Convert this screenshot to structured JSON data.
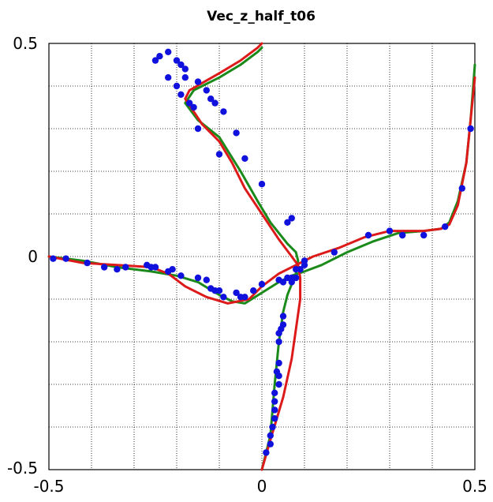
{
  "chart_data": {
    "type": "line",
    "title": "Vec_z_half_t06",
    "xlim": [
      -0.5,
      0.5
    ],
    "ylim": [
      -0.5,
      0.5
    ],
    "x_ticks": [
      -0.5,
      0,
      0.5
    ],
    "y_ticks": [
      -0.5,
      0,
      0.5
    ],
    "x_tick_labels": [
      "-0.5",
      "0",
      "0.5"
    ],
    "y_tick_labels": [
      "-0.5",
      "0",
      "0.5"
    ],
    "grid": true,
    "series": [
      {
        "kind": "line",
        "color": "#1a8a1a",
        "segments": [
          [
            [
              -0.5,
              0.0
            ],
            [
              -0.42,
              -0.01
            ],
            [
              -0.34,
              -0.025
            ],
            [
              -0.26,
              -0.035
            ],
            [
              -0.2,
              -0.045
            ],
            [
              -0.15,
              -0.06
            ],
            [
              -0.1,
              -0.09
            ],
            [
              -0.07,
              -0.105
            ],
            [
              -0.04,
              -0.11
            ],
            [
              0.0,
              -0.085
            ],
            [
              0.04,
              -0.06
            ],
            [
              0.07,
              -0.045
            ],
            [
              0.1,
              -0.035
            ],
            [
              0.14,
              -0.02
            ],
            [
              0.2,
              0.01
            ],
            [
              0.26,
              0.035
            ],
            [
              0.32,
              0.055
            ],
            [
              0.38,
              0.06
            ],
            [
              0.42,
              0.065
            ],
            [
              0.44,
              0.08
            ],
            [
              0.46,
              0.13
            ],
            [
              0.48,
              0.22
            ],
            [
              0.49,
              0.32
            ],
            [
              0.5,
              0.45
            ]
          ],
          [
            [
              0.0,
              -0.5
            ],
            [
              0.02,
              -0.42
            ],
            [
              0.03,
              -0.3
            ],
            [
              0.04,
              -0.2
            ],
            [
              0.05,
              -0.13
            ],
            [
              0.06,
              -0.09
            ],
            [
              0.08,
              -0.04
            ],
            [
              0.085,
              -0.01
            ],
            [
              0.08,
              0.01
            ],
            [
              0.06,
              0.03
            ],
            [
              0.02,
              0.08
            ],
            [
              -0.01,
              0.13
            ],
            [
              -0.05,
              0.2
            ],
            [
              -0.1,
              0.28
            ],
            [
              -0.15,
              0.32
            ],
            [
              -0.18,
              0.36
            ],
            [
              -0.16,
              0.39
            ],
            [
              -0.1,
              0.42
            ],
            [
              -0.05,
              0.45
            ],
            [
              -0.01,
              0.48
            ],
            [
              0.0,
              0.49
            ]
          ]
        ]
      },
      {
        "kind": "line",
        "color": "#dd1a1a",
        "segments": [
          [
            [
              -0.5,
              0.0
            ],
            [
              -0.42,
              -0.015
            ],
            [
              -0.34,
              -0.02
            ],
            [
              -0.26,
              -0.025
            ],
            [
              -0.22,
              -0.04
            ],
            [
              -0.18,
              -0.07
            ],
            [
              -0.13,
              -0.095
            ],
            [
              -0.08,
              -0.11
            ],
            [
              -0.03,
              -0.1
            ],
            [
              0.0,
              -0.07
            ],
            [
              0.04,
              -0.04
            ],
            [
              0.08,
              -0.02
            ],
            [
              0.12,
              -0.0
            ],
            [
              0.18,
              0.02
            ],
            [
              0.24,
              0.045
            ],
            [
              0.3,
              0.06
            ],
            [
              0.38,
              0.06
            ],
            [
              0.42,
              0.065
            ],
            [
              0.44,
              0.075
            ],
            [
              0.46,
              0.12
            ],
            [
              0.48,
              0.22
            ],
            [
              0.49,
              0.32
            ],
            [
              0.5,
              0.42
            ]
          ],
          [
            [
              0.0,
              -0.5
            ],
            [
              0.02,
              -0.43
            ],
            [
              0.05,
              -0.33
            ],
            [
              0.07,
              -0.24
            ],
            [
              0.08,
              -0.17
            ],
            [
              0.09,
              -0.1
            ],
            [
              0.09,
              -0.05
            ],
            [
              0.085,
              -0.02
            ],
            [
              0.07,
              0.0
            ],
            [
              0.04,
              0.04
            ],
            [
              0.0,
              0.1
            ],
            [
              -0.04,
              0.16
            ],
            [
              -0.07,
              0.22
            ],
            [
              -0.1,
              0.27
            ],
            [
              -0.14,
              0.31
            ],
            [
              -0.18,
              0.37
            ],
            [
              -0.17,
              0.39
            ],
            [
              -0.1,
              0.43
            ],
            [
              -0.05,
              0.46
            ],
            [
              -0.01,
              0.49
            ],
            [
              0.0,
              0.5
            ]
          ]
        ]
      },
      {
        "kind": "scatter",
        "color": "#1111dd",
        "points": [
          [
            -0.49,
            -0.005
          ],
          [
            -0.46,
            -0.005
          ],
          [
            -0.41,
            -0.015
          ],
          [
            -0.37,
            -0.025
          ],
          [
            -0.34,
            -0.03
          ],
          [
            -0.32,
            -0.025
          ],
          [
            -0.27,
            -0.02
          ],
          [
            -0.26,
            -0.025
          ],
          [
            -0.25,
            -0.025
          ],
          [
            -0.22,
            -0.035
          ],
          [
            -0.21,
            -0.03
          ],
          [
            -0.19,
            -0.045
          ],
          [
            -0.15,
            -0.05
          ],
          [
            -0.13,
            -0.055
          ],
          [
            -0.12,
            -0.075
          ],
          [
            -0.11,
            -0.08
          ],
          [
            -0.1,
            -0.08
          ],
          [
            -0.09,
            -0.095
          ],
          [
            -0.06,
            -0.085
          ],
          [
            -0.05,
            -0.095
          ],
          [
            -0.04,
            -0.095
          ],
          [
            -0.02,
            -0.08
          ],
          [
            0.0,
            -0.065
          ],
          [
            0.04,
            -0.055
          ],
          [
            0.05,
            -0.06
          ],
          [
            0.06,
            -0.05
          ],
          [
            0.07,
            -0.05
          ],
          [
            0.08,
            -0.03
          ],
          [
            0.09,
            -0.03
          ],
          [
            0.1,
            -0.01
          ],
          [
            0.17,
            0.01
          ],
          [
            0.25,
            0.05
          ],
          [
            0.3,
            0.06
          ],
          [
            0.33,
            0.05
          ],
          [
            0.38,
            0.05
          ],
          [
            0.43,
            0.07
          ],
          [
            0.47,
            0.16
          ],
          [
            0.49,
            0.3
          ],
          [
            0.1,
            -0.02
          ],
          [
            0.08,
            -0.05
          ],
          [
            0.07,
            -0.06
          ],
          [
            0.05,
            -0.14
          ],
          [
            0.05,
            -0.16
          ],
          [
            0.045,
            -0.17
          ],
          [
            0.04,
            -0.18
          ],
          [
            0.04,
            -0.2
          ],
          [
            0.04,
            -0.25
          ],
          [
            0.035,
            -0.27
          ],
          [
            0.04,
            -0.28
          ],
          [
            0.04,
            -0.3
          ],
          [
            0.03,
            -0.32
          ],
          [
            0.03,
            -0.34
          ],
          [
            0.03,
            -0.36
          ],
          [
            0.03,
            -0.38
          ],
          [
            0.025,
            -0.4
          ],
          [
            0.02,
            -0.42
          ],
          [
            0.02,
            -0.44
          ],
          [
            0.01,
            -0.46
          ],
          [
            0.06,
            0.08
          ],
          [
            0.07,
            0.09
          ],
          [
            0.0,
            0.17
          ],
          [
            -0.04,
            0.23
          ],
          [
            -0.06,
            0.29
          ],
          [
            -0.09,
            0.34
          ],
          [
            -0.11,
            0.36
          ],
          [
            -0.12,
            0.37
          ],
          [
            -0.13,
            0.39
          ],
          [
            -0.15,
            0.41
          ],
          [
            -0.18,
            0.42
          ],
          [
            -0.18,
            0.44
          ],
          [
            -0.19,
            0.45
          ],
          [
            -0.2,
            0.46
          ],
          [
            -0.22,
            0.48
          ],
          [
            -0.24,
            0.47
          ],
          [
            -0.25,
            0.46
          ],
          [
            -0.22,
            0.42
          ],
          [
            -0.2,
            0.4
          ],
          [
            -0.19,
            0.38
          ],
          [
            -0.17,
            0.36
          ],
          [
            -0.16,
            0.35
          ],
          [
            -0.15,
            0.3
          ],
          [
            -0.1,
            0.24
          ]
        ]
      }
    ]
  }
}
